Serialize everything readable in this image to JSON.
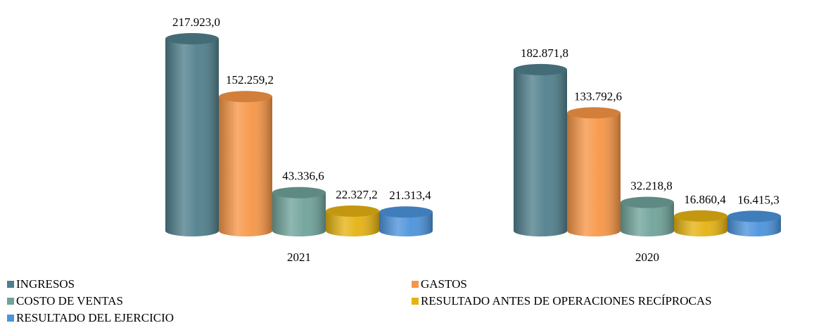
{
  "chart_data": {
    "type": "bar3d",
    "categories": [
      "2021",
      "2020"
    ],
    "series": [
      {
        "name": "INGRESOS",
        "color": "#4f7f8c",
        "values": [
          217923.0,
          182871.8
        ],
        "value_labels": [
          "217.923,0",
          "182.871,8"
        ]
      },
      {
        "name": "GASTOS",
        "color": "#f79646",
        "values": [
          152259.2,
          133792.6
        ],
        "value_labels": [
          "152.259,2",
          "133.792,6"
        ]
      },
      {
        "name": "COSTO DE VENTAS",
        "color": "#6fa39a",
        "values": [
          43336.6,
          32218.8
        ],
        "value_labels": [
          "43.336,6",
          "32.218,8"
        ]
      },
      {
        "name": "RESULTADO ANTES DE OPERACIONES RECÍPROCAS",
        "color": "#e5b212",
        "values": [
          22327.2,
          16860.4
        ],
        "value_labels": [
          "22.327,2",
          "16.860,4"
        ]
      },
      {
        "name": "RESULTADO DEL EJERCICIO",
        "color": "#4c93dc",
        "values": [
          21313.4,
          16415.3
        ],
        "value_labels": [
          "21.313,4",
          "16.415,3"
        ]
      }
    ]
  }
}
